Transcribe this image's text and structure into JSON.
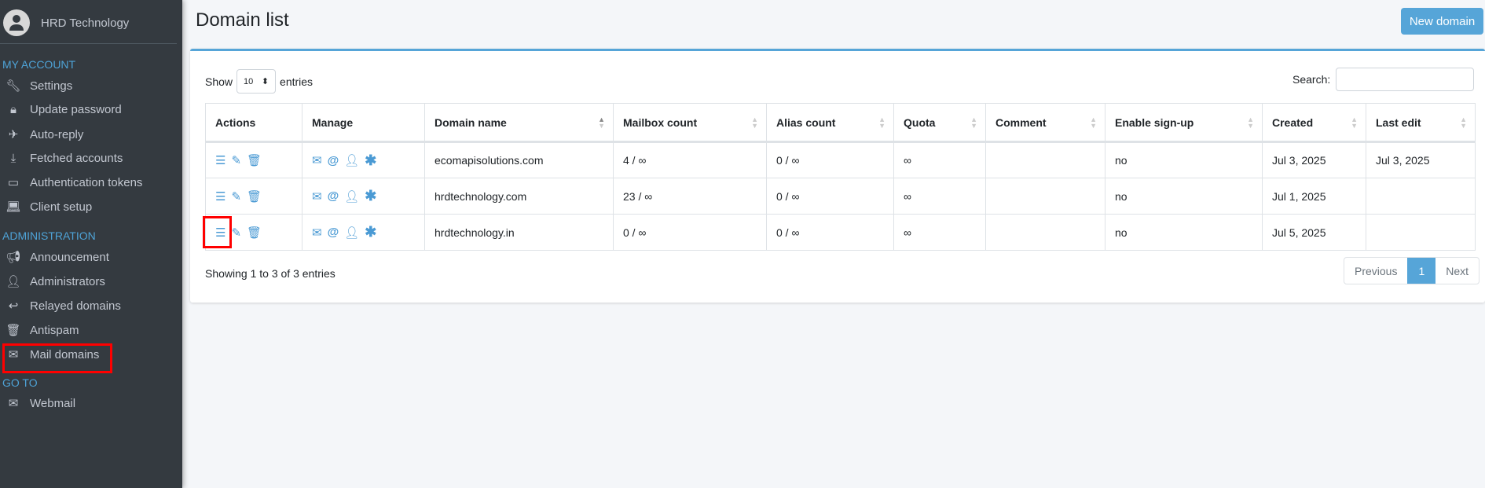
{
  "sidebar": {
    "user": "HRD Technology",
    "sections": [
      {
        "title": "MY ACCOUNT"
      },
      {
        "title": "ADMINISTRATION"
      },
      {
        "title": "GO TO"
      }
    ],
    "items": [
      "Settings",
      "Update password",
      "Auto-reply",
      "Fetched accounts",
      "Authentication tokens",
      "Client setup",
      "Announcement",
      "Administrators",
      "Relayed domains",
      "Antispam",
      "Mail domains",
      "Webmail"
    ]
  },
  "header": {
    "title": "Domain list",
    "new_button": "New domain"
  },
  "controls": {
    "show": "Show",
    "entries_value": "10",
    "entries": "entries",
    "search_label": "Search:",
    "search_value": ""
  },
  "table": {
    "columns": [
      "Actions",
      "Manage",
      "Domain name",
      "Mailbox count",
      "Alias count",
      "Quota",
      "Comment",
      "Enable sign-up",
      "Created",
      "Last edit"
    ],
    "rows": [
      {
        "domain": "ecomapisolutions.com",
        "mailbox": "4 / ∞",
        "alias": "0 / ∞",
        "quota": "∞",
        "comment": "",
        "signup": "no",
        "created": "Jul 3, 2025",
        "edited": "Jul 3, 2025"
      },
      {
        "domain": "hrdtechnology.com",
        "mailbox": "23 / ∞",
        "alias": "0 / ∞",
        "quota": "∞",
        "comment": "",
        "signup": "no",
        "created": "Jul 1, 2025",
        "edited": ""
      },
      {
        "domain": "hrdtechnology.in",
        "mailbox": "0 / ∞",
        "alias": "0 / ∞",
        "quota": "∞",
        "comment": "",
        "signup": "no",
        "created": "Jul 5, 2025",
        "edited": ""
      }
    ]
  },
  "footer": {
    "info": "Showing 1 to 3 of 3 entries",
    "previous": "Previous",
    "page": "1",
    "next": "Next"
  },
  "colors": {
    "accent": "#56a5d8",
    "sidebar": "#343a40",
    "highlight": "#ff0000"
  }
}
